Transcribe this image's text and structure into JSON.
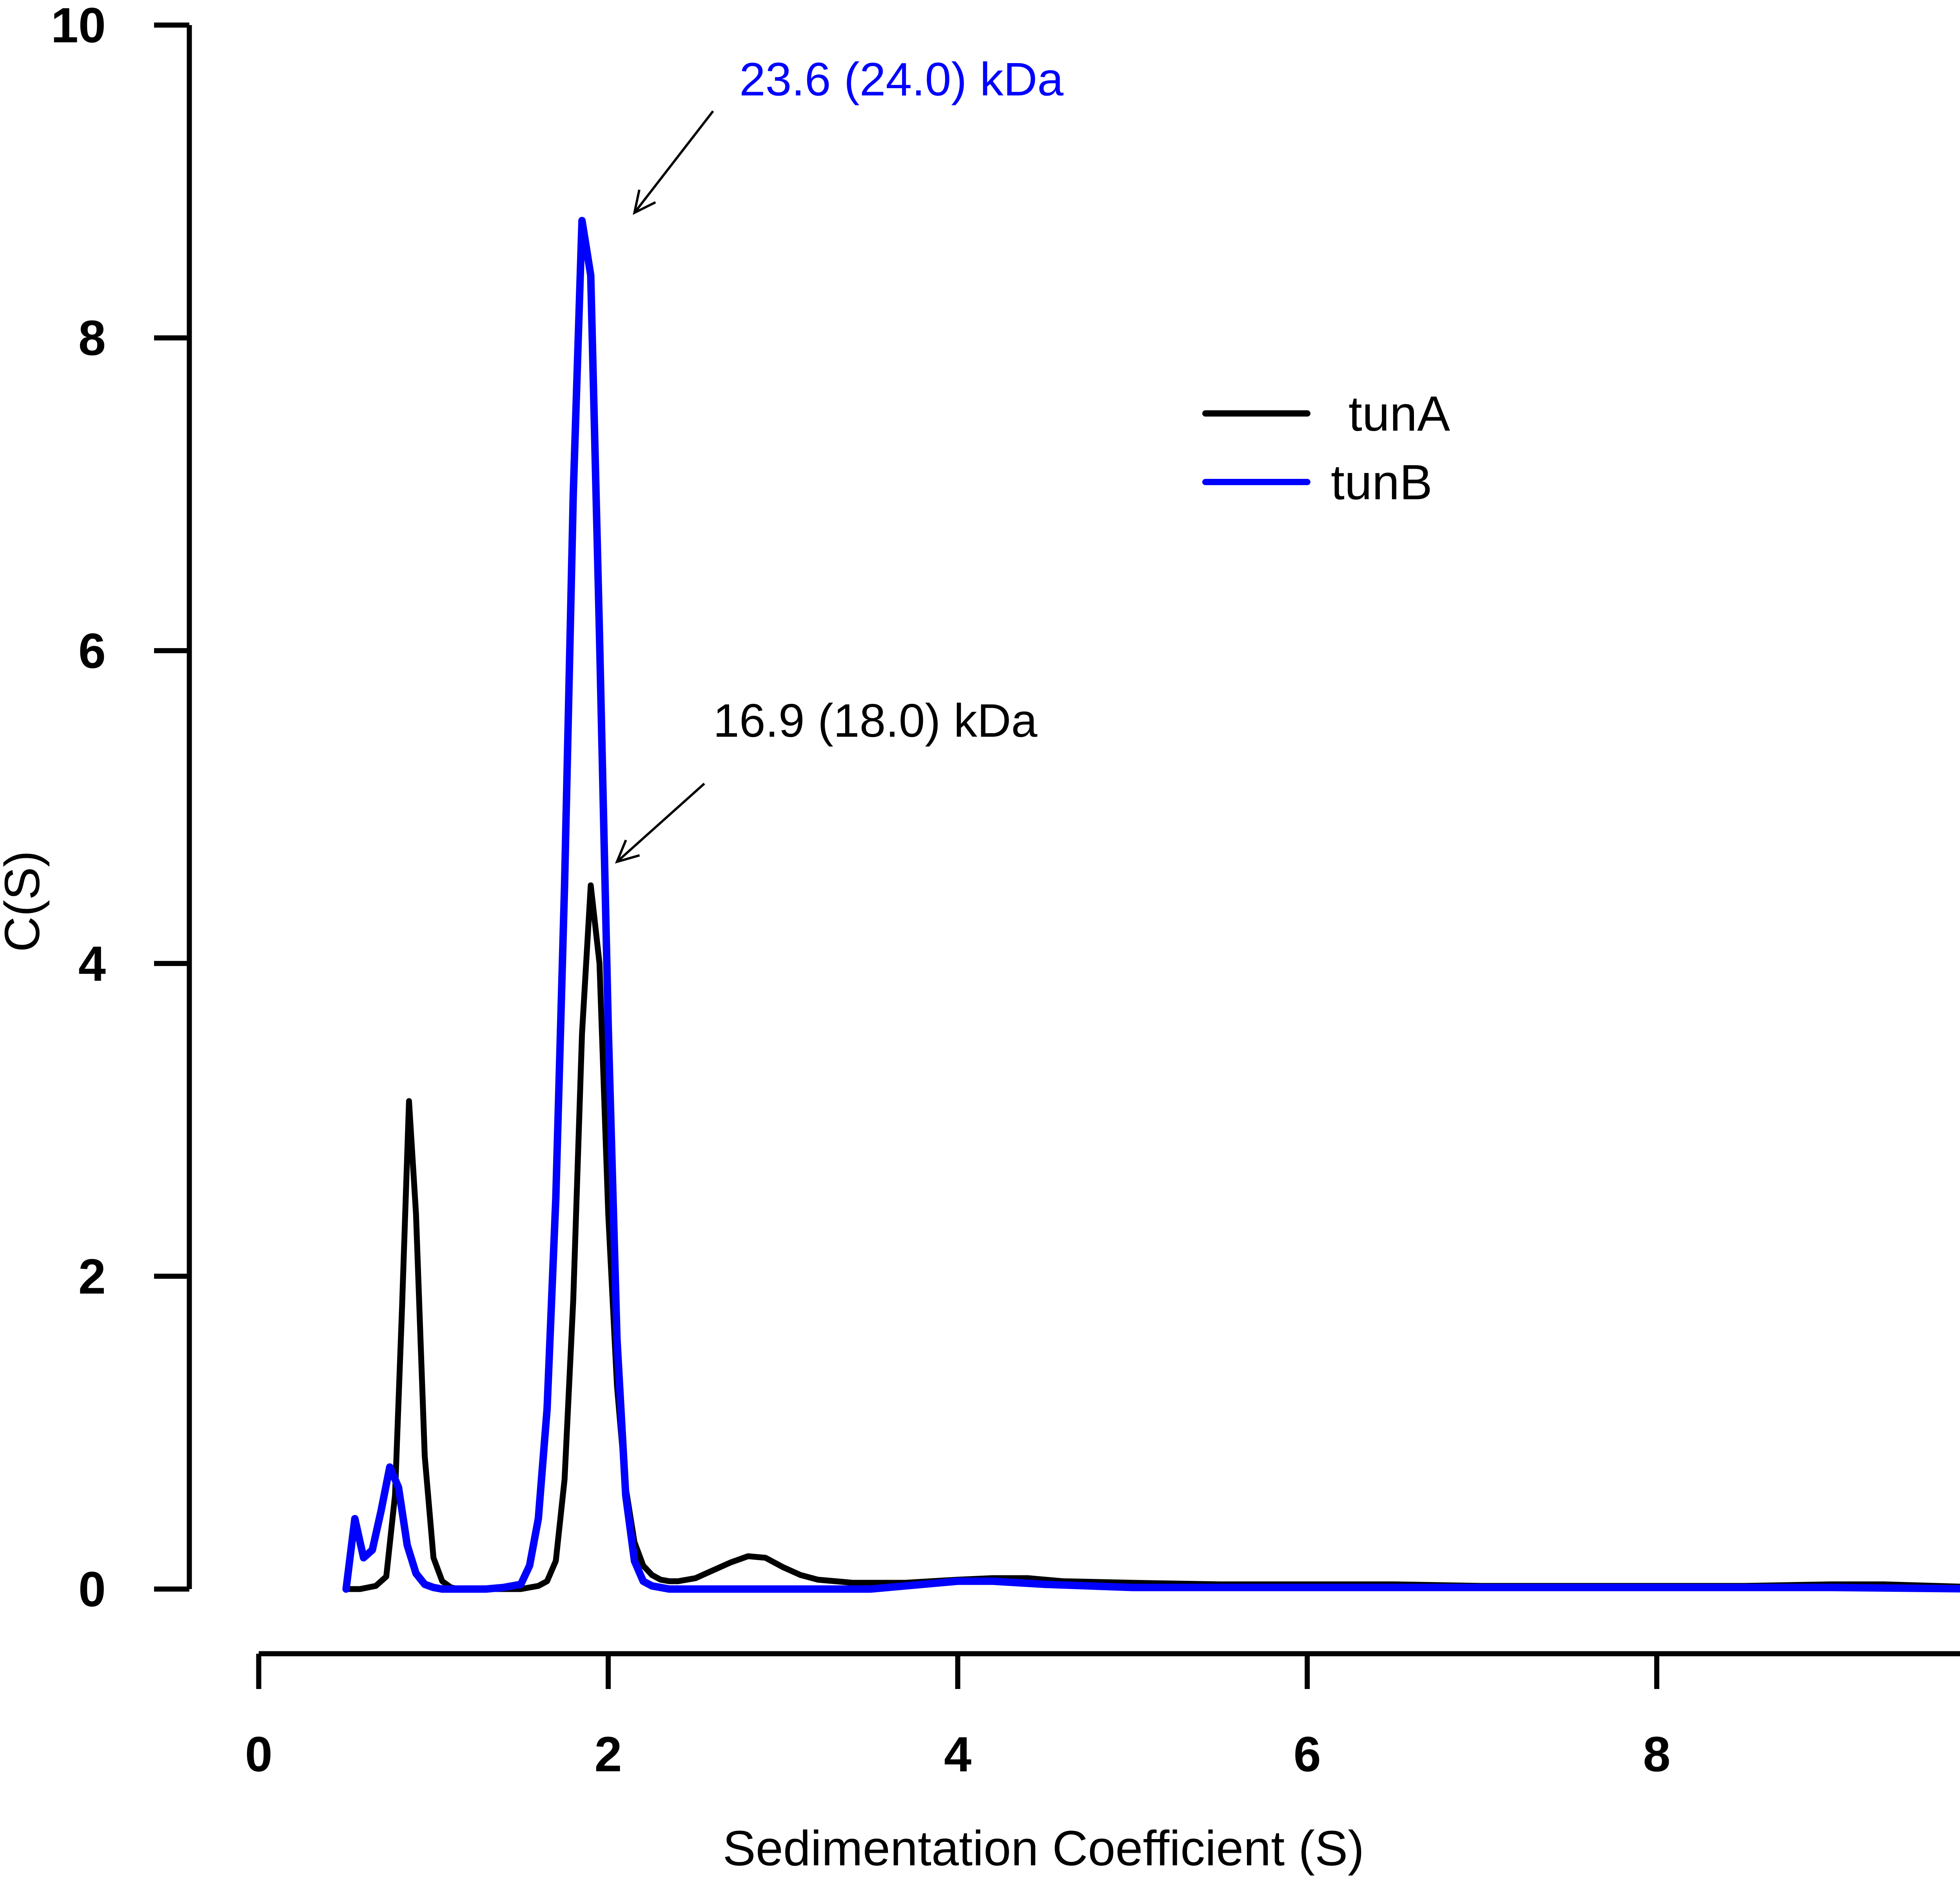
{
  "chart_data": {
    "type": "line",
    "xlabel": "Sedimentation Coefficient (S)",
    "ylabel": "C(S)",
    "xlim": [
      0,
      10
    ],
    "ylim": [
      0,
      10
    ],
    "x_ticks": [
      "0",
      "2",
      "4",
      "6",
      "8",
      "10"
    ],
    "y_ticks": [
      "0",
      "2",
      "4",
      "6",
      "8",
      "10"
    ],
    "grid": false,
    "legend_position": "top-right",
    "series": [
      {
        "name": "tunA",
        "color": "#000000",
        "x": [
          0.5,
          0.58,
          0.67,
          0.73,
          0.78,
          0.82,
          0.86,
          0.9,
          0.95,
          1.0,
          1.05,
          1.1,
          1.15,
          1.2,
          1.3,
          1.4,
          1.5,
          1.6,
          1.65,
          1.7,
          1.75,
          1.8,
          1.85,
          1.9,
          1.95,
          2.0,
          2.05,
          2.1,
          2.15,
          2.2,
          2.25,
          2.3,
          2.35,
          2.4,
          2.45,
          2.5,
          2.6,
          2.7,
          2.8,
          2.9,
          3.0,
          3.1,
          3.2,
          3.3,
          3.4,
          3.5,
          3.7,
          4.0,
          4.2,
          4.4,
          4.6,
          5.0,
          5.5,
          6.0,
          6.5,
          7.0,
          7.5,
          8.0,
          8.5,
          9.0,
          9.3,
          9.6,
          9.9
        ],
        "values": [
          0.0,
          0.0,
          0.02,
          0.08,
          0.6,
          1.8,
          3.12,
          2.4,
          0.85,
          0.2,
          0.05,
          0.01,
          0.0,
          0.0,
          0.0,
          0.0,
          0.0,
          0.02,
          0.05,
          0.18,
          0.7,
          1.85,
          3.55,
          4.5,
          4.0,
          2.4,
          1.3,
          0.65,
          0.3,
          0.15,
          0.09,
          0.06,
          0.05,
          0.05,
          0.06,
          0.07,
          0.12,
          0.17,
          0.21,
          0.2,
          0.14,
          0.09,
          0.06,
          0.05,
          0.04,
          0.04,
          0.04,
          0.06,
          0.07,
          0.07,
          0.05,
          0.04,
          0.03,
          0.03,
          0.03,
          0.02,
          0.02,
          0.02,
          0.02,
          0.03,
          0.03,
          0.02,
          0.01
        ]
      },
      {
        "name": "tunB",
        "color": "#0000ff",
        "x": [
          0.5,
          0.55,
          0.6,
          0.65,
          0.7,
          0.75,
          0.8,
          0.85,
          0.9,
          0.95,
          1.0,
          1.05,
          1.1,
          1.15,
          1.2,
          1.3,
          1.4,
          1.5,
          1.55,
          1.6,
          1.65,
          1.7,
          1.75,
          1.8,
          1.85,
          1.9,
          1.95,
          2.0,
          2.05,
          2.1,
          2.15,
          2.2,
          2.25,
          2.3,
          2.35,
          2.4,
          2.45,
          2.5,
          2.55,
          2.6,
          2.65,
          2.7,
          2.8,
          2.9,
          3.0,
          3.5,
          4.0,
          4.2,
          4.5,
          5.0,
          6.0,
          7.0,
          8.0,
          9.0,
          9.9
        ],
        "values": [
          0.0,
          0.45,
          0.2,
          0.25,
          0.5,
          0.78,
          0.65,
          0.28,
          0.1,
          0.03,
          0.01,
          0.0,
          0.0,
          0.0,
          0.0,
          0.0,
          0.01,
          0.03,
          0.15,
          0.45,
          1.15,
          2.5,
          4.5,
          7.0,
          8.75,
          8.4,
          6.1,
          3.6,
          1.6,
          0.6,
          0.18,
          0.05,
          0.02,
          0.01,
          0.0,
          0.0,
          0.0,
          0.0,
          0.0,
          0.0,
          0.0,
          0.0,
          0.0,
          0.0,
          0.0,
          0.0,
          0.05,
          0.05,
          0.03,
          0.01,
          0.01,
          0.01,
          0.01,
          0.01,
          0.0
        ]
      }
    ],
    "annotations": [
      {
        "text": "23.6 (24.0) kDa",
        "color": "#0000ff",
        "text_x": 2.75,
        "text_y": 9.55,
        "arrow_from": [
          2.6,
          9.45
        ],
        "arrow_to": [
          2.15,
          8.8
        ]
      },
      {
        "text": "16.9 (18.0) kDa",
        "color": "#000000",
        "text_x": 2.6,
        "text_y": 5.45,
        "arrow_from": [
          2.55,
          5.15
        ],
        "arrow_to": [
          2.05,
          4.65
        ]
      }
    ]
  }
}
